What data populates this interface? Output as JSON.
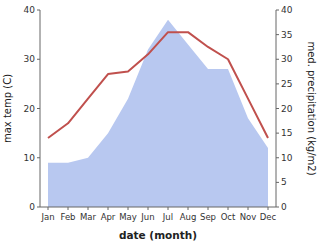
{
  "chart_data": {
    "type": "line",
    "xlabel": "date (month)",
    "ylabel": "max temp (C)",
    "y2label": "med. precipitation (kg/m2)",
    "categories": [
      "Jan",
      "Feb",
      "Mar",
      "Apr",
      "May",
      "Jun",
      "Jul",
      "Aug",
      "Sep",
      "Oct",
      "Nov",
      "Dec"
    ],
    "series": [
      {
        "type": "area",
        "axis": "y2",
        "color": "#b8c8f0",
        "values": [
          9,
          9,
          10,
          15,
          22,
          32,
          38,
          33,
          28,
          28,
          18,
          12
        ]
      },
      {
        "type": "line",
        "color": "#c0504d",
        "values": [
          14,
          17,
          22,
          27,
          27.5,
          31,
          35.5,
          35.5,
          32.5,
          30,
          22,
          14
        ]
      }
    ],
    "ylim": [
      0,
      40
    ],
    "yticks": [
      0,
      10,
      20,
      30,
      40
    ],
    "y2lim": [
      0,
      40
    ],
    "y2ticks": [
      0,
      5,
      10,
      15,
      20,
      25,
      30,
      35,
      40
    ],
    "grid": false
  }
}
